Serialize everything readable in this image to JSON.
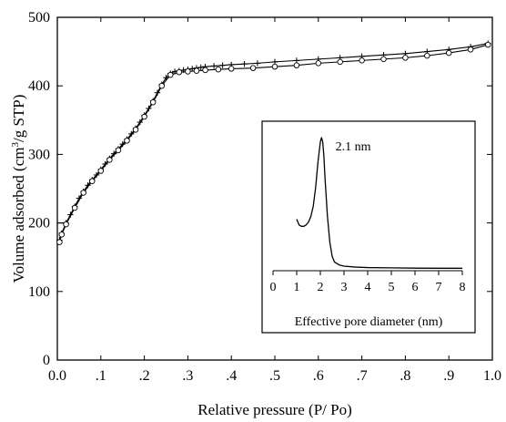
{
  "chart_data": [
    {
      "type": "line",
      "title": "",
      "xlabel": "Relative pressure (P/ Po)",
      "ylabel": "Volume adsorbed (cm3/g STP)",
      "ylabel_main": "Volume adsorbed (cm",
      "ylabel_sup": "3",
      "ylabel_tail": "/g STP)",
      "xlim": [
        0.0,
        1.0
      ],
      "ylim": [
        0,
        500
      ],
      "x_tick_labels": [
        "0.0",
        ".1",
        ".2",
        ".3",
        ".4",
        ".5",
        ".6",
        ".7",
        ".8",
        ".9",
        "1.0"
      ],
      "y_tick_labels": [
        "0",
        "100",
        "200",
        "300",
        "400",
        "500"
      ],
      "series": [
        {
          "marker": "plus",
          "x": [
            0.005,
            0.01,
            0.02,
            0.03,
            0.04,
            0.05,
            0.06,
            0.07,
            0.08,
            0.09,
            0.1,
            0.11,
            0.12,
            0.13,
            0.14,
            0.15,
            0.16,
            0.17,
            0.18,
            0.19,
            0.2,
            0.21,
            0.22,
            0.23,
            0.24,
            0.25,
            0.26,
            0.27,
            0.28,
            0.29,
            0.3,
            0.31,
            0.32,
            0.33,
            0.34,
            0.36,
            0.38,
            0.4,
            0.43,
            0.46,
            0.5,
            0.55,
            0.6,
            0.65,
            0.7,
            0.75,
            0.8,
            0.85,
            0.9,
            0.95,
            0.99
          ],
          "y": [
            175,
            185,
            200,
            212,
            224,
            236,
            246,
            255,
            263,
            270,
            278,
            286,
            294,
            301,
            308,
            315,
            322,
            330,
            338,
            347,
            357,
            367,
            378,
            390,
            402,
            412,
            418,
            421,
            422,
            423,
            424,
            425,
            426,
            427,
            428,
            429,
            430,
            431,
            432,
            433,
            435,
            437,
            439,
            441,
            443,
            445,
            447,
            450,
            453,
            457,
            462
          ]
        },
        {
          "marker": "circle",
          "x": [
            0.005,
            0.01,
            0.02,
            0.04,
            0.06,
            0.08,
            0.1,
            0.12,
            0.14,
            0.16,
            0.18,
            0.2,
            0.22,
            0.24,
            0.26,
            0.28,
            0.3,
            0.32,
            0.34,
            0.37,
            0.4,
            0.45,
            0.5,
            0.55,
            0.6,
            0.65,
            0.7,
            0.75,
            0.8,
            0.85,
            0.9,
            0.95,
            0.99
          ],
          "y": [
            172,
            183,
            198,
            222,
            244,
            261,
            276,
            292,
            306,
            320,
            336,
            355,
            376,
            400,
            416,
            420,
            421,
            422,
            423,
            424,
            425,
            426,
            428,
            430,
            433,
            435,
            437,
            439,
            441,
            444,
            448,
            453,
            460
          ]
        }
      ],
      "reference_lines": [
        {
          "type": "horizontal-segment",
          "y": 200,
          "x": [
            0.0,
            0.015
          ]
        }
      ]
    },
    {
      "type": "line",
      "title": "",
      "xlabel": "Effective pore diameter (nm)",
      "ylabel": "",
      "xlim": [
        0,
        8
      ],
      "ylim": [
        0,
        100
      ],
      "x_tick_labels": [
        "0",
        "1",
        "2",
        "3",
        "4",
        "5",
        "6",
        "7",
        "8"
      ],
      "series": [
        {
          "x": [
            1.0,
            1.1,
            1.2,
            1.3,
            1.4,
            1.5,
            1.6,
            1.7,
            1.8,
            1.9,
            2.0,
            2.05,
            2.1,
            2.15,
            2.2,
            2.3,
            2.4,
            2.5,
            2.6,
            2.8,
            3.0,
            3.5,
            4.0,
            5.0,
            6.0,
            7.0,
            8.0
          ],
          "y": [
            36,
            32,
            31,
            31,
            32,
            34,
            38,
            45,
            58,
            76,
            90,
            93,
            90,
            80,
            64,
            38,
            20,
            10,
            6,
            4,
            3.2,
            2.5,
            2.2,
            2,
            1.8,
            1.7,
            1.7
          ]
        }
      ],
      "annotations": [
        {
          "text": "2.1 nm",
          "x": 2.1,
          "y": 93
        }
      ]
    }
  ]
}
